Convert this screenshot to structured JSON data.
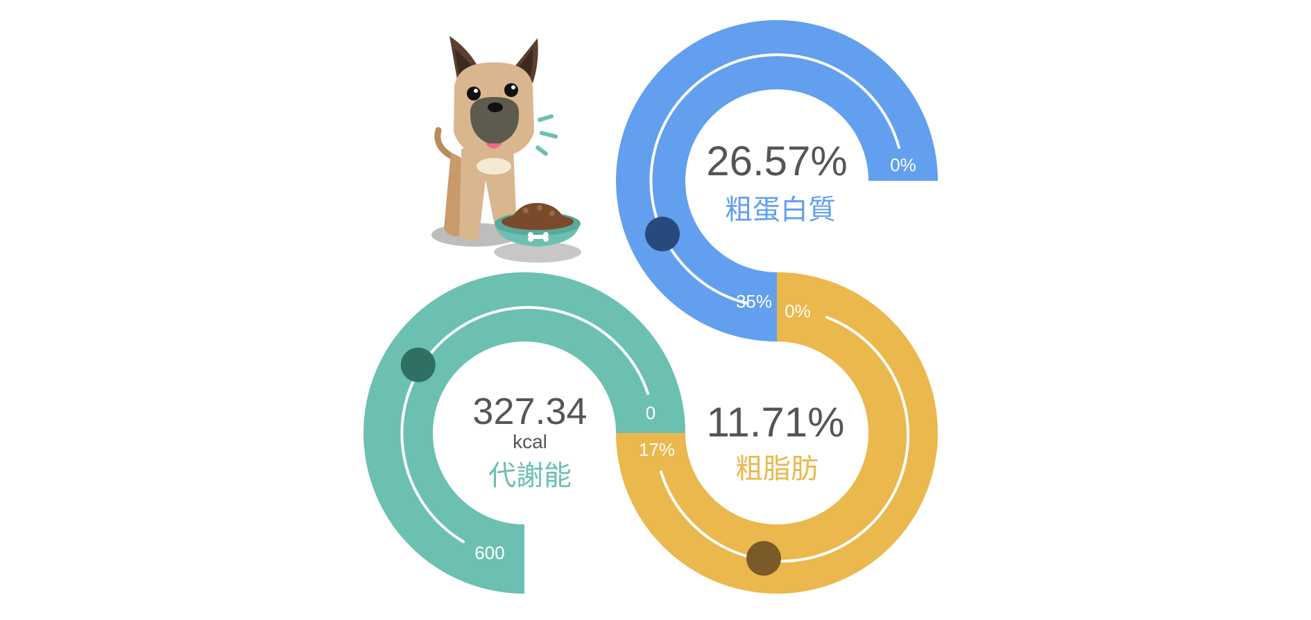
{
  "chart_data": [
    {
      "type": "gauge",
      "label": "粗蛋白質",
      "value_text": "26.57%",
      "value": 26.57,
      "min": 0,
      "max": 35,
      "min_label": "0%",
      "max_label": "35%",
      "colors": {
        "track": "#629fee",
        "value": "#629fee",
        "knob": "#264a7c"
      }
    },
    {
      "type": "gauge",
      "label": "粗脂肪",
      "value_text": "11.71%",
      "value": 11.71,
      "min": 0,
      "max": 17,
      "min_label": "0%",
      "max_label": "17%",
      "colors": {
        "track": "#ebb84d",
        "value": "#ebb84d",
        "knob": "#7a5a28"
      }
    },
    {
      "type": "gauge",
      "label": "代謝能",
      "value_text": "327.34",
      "unit": "kcal",
      "value": 327.34,
      "min": 0,
      "max": 600,
      "min_label": "0",
      "max_label": "600",
      "colors": {
        "track": "#6cc0b2",
        "value": "#6cc0b2",
        "knob": "#2f6f64"
      }
    }
  ],
  "illustration": {
    "icon": "dog-with-food-bowl-icon",
    "colors": {
      "fur": "#d9b68e",
      "ears": "#5a4030",
      "bowl": "#6cc0b2",
      "kibble": "#7a4a2c",
      "accent": "#6cc0b2"
    }
  }
}
